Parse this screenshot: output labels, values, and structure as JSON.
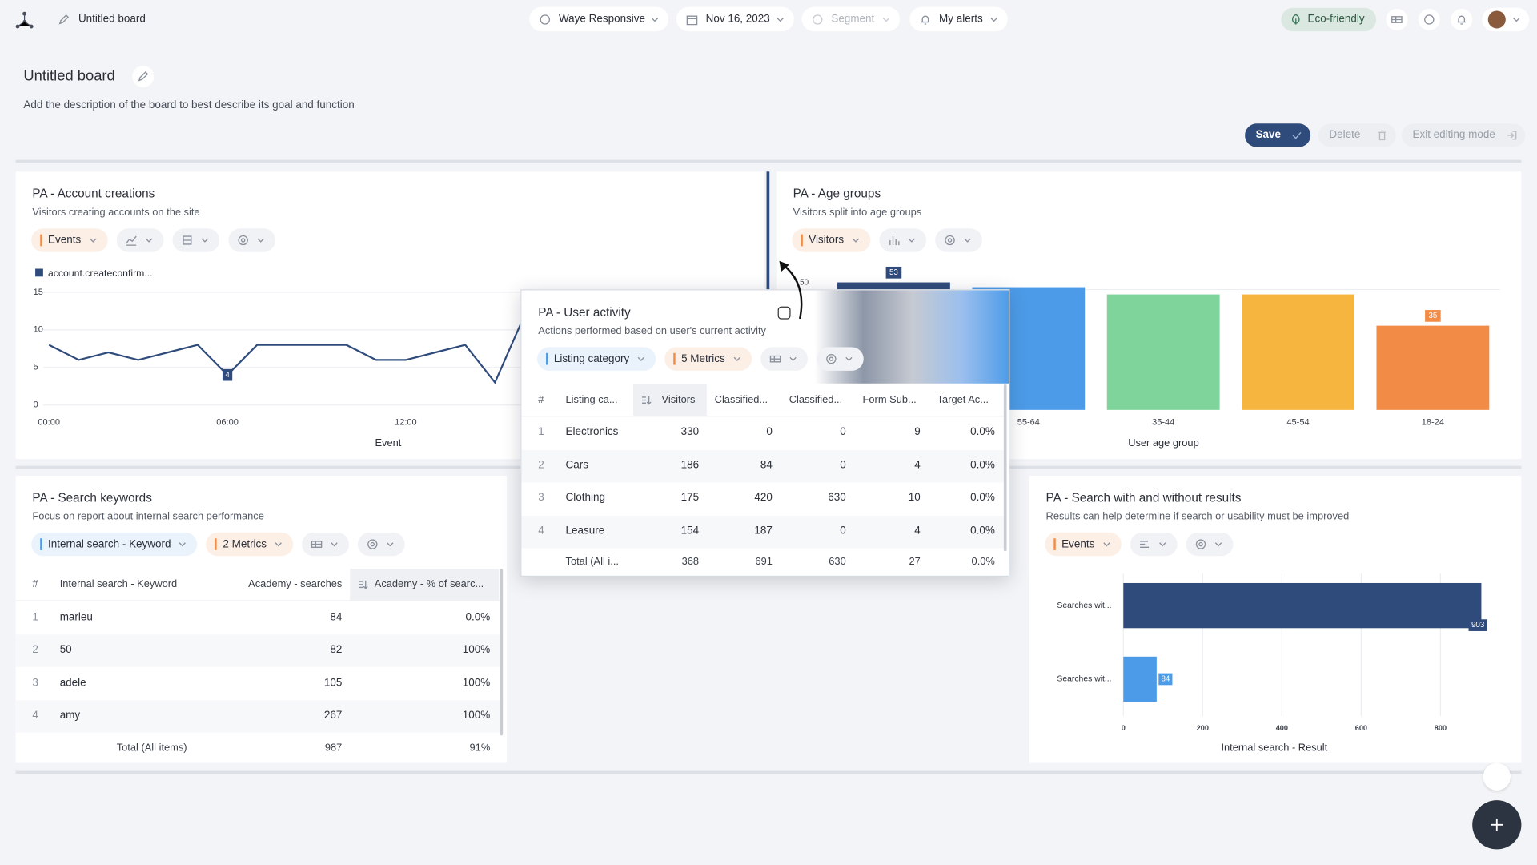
{
  "header": {
    "board_name": "Untitled board",
    "filters": [
      "Waye Responsive",
      "Nov 16, 2023",
      "Segment",
      "My alerts"
    ],
    "eco_label": "Eco-friendly"
  },
  "board": {
    "title": "Untitled board",
    "description": "Add the description of the board to best describe its goal and function",
    "actions": [
      "Save",
      "Delete",
      "Exit editing mode"
    ]
  },
  "widgets": [
    {
      "title": "PA - Account creations",
      "subtitle": "Visitors creating accounts on the site",
      "controls": [
        {
          "label": "Events",
          "color": "#f28b45"
        }
      ],
      "chart_data": {
        "type": "line",
        "categories": [
          "00:00",
          null,
          null,
          null,
          null,
          null,
          "06:00",
          null,
          null,
          null,
          null,
          null,
          "12:00",
          null,
          null,
          null,
          null
        ],
        "series": [
          {
            "name": "account.createconfirm...",
            "color": "#2f4b7c",
            "values": [
              8,
              6,
              7,
              6,
              7,
              8,
              4,
              8,
              8,
              8,
              8,
              6,
              6,
              7,
              8,
              3,
              12
            ],
            "value_labels": [
              null,
              null,
              null,
              null,
              null,
              null,
              "4",
              null,
              null,
              null,
              null,
              null,
              null,
              null,
              null,
              null,
              null
            ]
          }
        ],
        "ylim": [
          0,
          15
        ],
        "yticks": [
          0,
          5,
          10,
          15
        ],
        "grid": true,
        "x_label": "Event"
      }
    },
    {
      "title": "PA - Age groups",
      "subtitle": "Visitors split into age groups",
      "controls": [
        {
          "label": "Visitors",
          "color": "#f28b45"
        }
      ],
      "chart_data": {
        "type": "bar",
        "categories": [
          null,
          "55-64",
          "35-44",
          "45-54",
          "18-24"
        ],
        "values": [
          53,
          51,
          48,
          48,
          35
        ],
        "value_labels": [
          "53",
          null,
          null,
          null,
          "35"
        ],
        "colors": [
          "#2f4b7c",
          "#4c9be8",
          "#7fd49b",
          "#f6b53f",
          "#f28b45"
        ],
        "ylim": [
          0,
          55
        ],
        "yticks": [
          50
        ],
        "grid": true,
        "x_label": "User age group"
      }
    },
    {
      "title": "PA - Search keywords",
      "subtitle": "Focus on report about internal search performance",
      "controls": [
        {
          "label": "Internal search - Keyword",
          "color": "#4c9be8"
        },
        {
          "label": "2 Metrics",
          "color": "#f28b45"
        }
      ],
      "table": {
        "headers": [
          "#",
          "Internal search - Keyword",
          "Academy - searches",
          "Academy - % of searc..."
        ],
        "rows": [
          [
            "1",
            "marleu",
            "84",
            "0.0%"
          ],
          [
            "2",
            "50",
            "82",
            "100%"
          ],
          [
            "3",
            "adele",
            "105",
            "100%"
          ],
          [
            "4",
            "amy",
            "267",
            "100%"
          ]
        ],
        "total": [
          "Total (All items)",
          "987",
          "91%"
        ]
      }
    },
    {
      "title": "PA - Search with and without results",
      "subtitle": "Results can help determine if search or usability must be improved",
      "controls": [
        {
          "label": "Events",
          "color": "#f28b45"
        }
      ],
      "chart_data": {
        "type": "hbar",
        "categories": [
          "Searches wit...",
          "Searches wit..."
        ],
        "values": [
          903,
          84
        ],
        "colors": [
          "#2f4b7c",
          "#4c9be8"
        ],
        "xlim": [
          0,
          905
        ],
        "xticks": [
          0,
          200,
          400,
          600,
          800
        ],
        "grid": true,
        "x_label": "Internal search - Result"
      }
    },
    {
      "title": "PA - User activity",
      "subtitle": "Actions performed based on user's current activity",
      "controls": [
        {
          "label": "Listing category",
          "color": "#4c9be8"
        },
        {
          "label": "5 Metrics",
          "color": "#f28b45"
        }
      ],
      "table": {
        "headers": [
          "#",
          "Listing ca...",
          "Visitors",
          "Classified...",
          "Classified...",
          "Form Sub...",
          "Target Ac..."
        ],
        "rows": [
          [
            "1",
            "Electronics",
            "330",
            "0",
            "0",
            "9",
            "0.0%"
          ],
          [
            "2",
            "Cars",
            "186",
            "84",
            "0",
            "4",
            "0.0%"
          ],
          [
            "3",
            "Clothing",
            "175",
            "420",
            "630",
            "10",
            "0.0%"
          ],
          [
            "4",
            "Leasure",
            "154",
            "187",
            "0",
            "4",
            "0.0%"
          ]
        ],
        "total": [
          "Total (All i...",
          "368",
          "691",
          "630",
          "27",
          "0.0%"
        ]
      }
    }
  ]
}
